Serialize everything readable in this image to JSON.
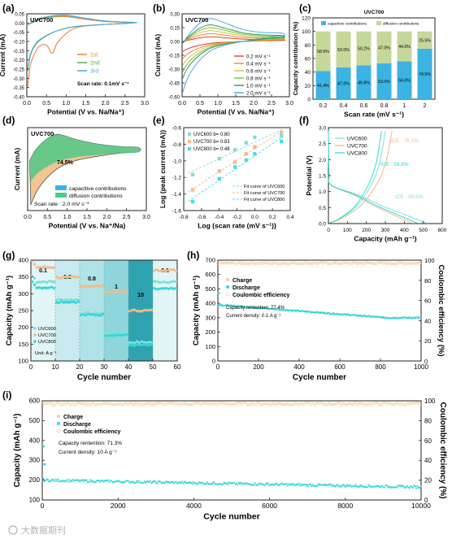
{
  "colors": {
    "orange": "#e8843c",
    "green": "#55b24a",
    "blue": "#4aa8dc",
    "red": "#e2402a",
    "cyan": "#2fd8d6",
    "peach": "#f5b98a",
    "charge": "#f6cfa4",
    "discharge": "#34d8da"
  },
  "chart_data": [
    {
      "panel": "a",
      "type": "line",
      "title": "UVC700",
      "xlabel": "Potential (V vs. Na/Na⁺)",
      "ylabel": "Current (mA)",
      "xlim": [
        0,
        3.0
      ],
      "ylim": [
        -0.4,
        0.05
      ],
      "xticks": [
        "0.0",
        "0.5",
        "1.0",
        "1.5",
        "2.0",
        "2.5",
        "3.0"
      ],
      "yticks": [
        "0.05",
        "0.00",
        "-0.05",
        "-0.10",
        "-0.15",
        "-0.20",
        "-0.25",
        "-0.30",
        "-0.35",
        "-0.40"
      ],
      "legend": [
        "1st",
        "2nd",
        "3rd"
      ],
      "note": "Scan rate: 0.1mV s⁻¹",
      "series": [
        {
          "name": "1st",
          "color": "#e8843c",
          "x": [
            0.02,
            0.3,
            0.6,
            1.0,
            1.5,
            2.0,
            2.5,
            2.8,
            2.5,
            1.8,
            1.2,
            0.8,
            0.65,
            0.5,
            0.3,
            0.1,
            0.02
          ],
          "y": [
            -0.01,
            0.015,
            0.03,
            0.035,
            0.02,
            0.008,
            0.004,
            0.003,
            -0.002,
            -0.01,
            -0.03,
            -0.1,
            -0.165,
            -0.12,
            -0.13,
            -0.22,
            -0.345
          ]
        },
        {
          "name": "2nd",
          "color": "#55b24a",
          "x": [
            0.02,
            0.3,
            0.6,
            1.0,
            1.5,
            2.0,
            2.5,
            2.8,
            2.5,
            1.8,
            1.2,
            0.8,
            0.5,
            0.25,
            0.1,
            0.02
          ],
          "y": [
            -0.01,
            0.02,
            0.035,
            0.04,
            0.025,
            0.01,
            0.005,
            0.003,
            -0.002,
            -0.01,
            -0.02,
            -0.04,
            -0.07,
            -0.11,
            -0.17,
            -0.26
          ]
        },
        {
          "name": "3rd",
          "color": "#4aa8dc",
          "x": [
            0.02,
            0.3,
            0.6,
            1.0,
            1.5,
            2.0,
            2.5,
            2.8,
            2.5,
            1.8,
            1.2,
            0.8,
            0.5,
            0.25,
            0.1,
            0.02
          ],
          "y": [
            -0.01,
            0.022,
            0.037,
            0.042,
            0.026,
            0.011,
            0.005,
            0.003,
            -0.002,
            -0.01,
            -0.02,
            -0.04,
            -0.068,
            -0.105,
            -0.165,
            -0.25
          ]
        }
      ]
    },
    {
      "panel": "b",
      "type": "line",
      "title": "UVC700",
      "xlabel": "Potential (V vs. Na/Na⁺)",
      "ylabel": "Current (mA)",
      "xlim": [
        0,
        3.0
      ],
      "ylim": [
        -0.6,
        0.3
      ],
      "xticks": [
        "0.0",
        "0.5",
        "1.0",
        "1.5",
        "2.0",
        "2.5",
        "3.0"
      ],
      "yticks": [
        "0.30",
        "0.15",
        "0.00",
        "-0.15",
        "-0.30",
        "-0.45",
        "-0.60"
      ],
      "legend": [
        "0.2 mV s⁻¹",
        "0.4 mV s⁻¹",
        "0.6 mV s⁻¹",
        "0.8 mV s⁻¹",
        "1.0 mV s⁻¹",
        "2.0 mV s⁻¹"
      ],
      "series": [
        {
          "name": "0.2 mV s⁻¹",
          "color": "#e2402a",
          "scale": 0.2
        },
        {
          "name": "0.4 mV s⁻¹",
          "color": "#e8843c",
          "scale": 0.34
        },
        {
          "name": "0.6 mV s⁻¹",
          "color": "#d6c43a",
          "scale": 0.47
        },
        {
          "name": "0.8 mV s⁻¹",
          "color": "#7bc043",
          "scale": 0.6
        },
        {
          "name": "1.0 mV s⁻¹",
          "color": "#2b9a4a",
          "scale": 0.72
        },
        {
          "name": "2.0 mV s⁻¹",
          "color": "#4aa8dc",
          "scale": 1.0
        }
      ]
    },
    {
      "panel": "c",
      "type": "bar",
      "title": "UVC700",
      "xlabel": "Scan rate (mV s⁻¹)",
      "ylabel": "Capacity contribution (%)",
      "ylim": [
        0,
        120
      ],
      "yticks": [
        "0",
        "20",
        "40",
        "60",
        "80",
        "100",
        "120"
      ],
      "categories": [
        "0.2",
        "0.4",
        "0.6",
        "0.8",
        "1",
        "2"
      ],
      "series": [
        {
          "name": "capacitive contributions",
          "color": "#3bb3e3",
          "values": [
            41.4,
            47.0,
            49.8,
            53.0,
            56.0,
            74.5
          ],
          "labels": [
            "41.4%",
            "47.0%",
            "49.8%",
            "53.0%",
            "56.0%",
            "74.5%"
          ]
        },
        {
          "name": "diffusion contributions",
          "color": "#c6d79a",
          "values": [
            58.6,
            53.0,
            50.2,
            47.0,
            44.0,
            25.5
          ],
          "labels": [
            "58.6%",
            "53.0%",
            "50.2%",
            "47.0%",
            "44.0%",
            "25.5%"
          ]
        }
      ]
    },
    {
      "panel": "d",
      "type": "area",
      "title": "UVC700",
      "xlabel": "Potential (V vs. Na⁺/Na)",
      "ylabel": "Current (mA)",
      "xlim": [
        0,
        3.0
      ],
      "xticks": [
        "0.0",
        "0.5",
        "1.0",
        "1.5",
        "2.0",
        "2.5",
        "3.0"
      ],
      "annotation": "74.5%",
      "note": "Scan rate : 2.0 mV s⁻¹",
      "legend": [
        "capacitive contributions",
        "diffusion contributions"
      ]
    },
    {
      "panel": "e",
      "type": "scatter",
      "xlabel": "Log (scan rate (mV s⁻¹))",
      "ylabel": "Log (peak current (mA))",
      "xlim": [
        -0.8,
        0.4
      ],
      "ylim": [
        -1.7,
        -0.5
      ],
      "xticks": [
        "-0.8",
        "-0.6",
        "-0.4",
        "-0.2",
        "0.0",
        "0.2",
        "0.4"
      ],
      "yticks": [
        "-0.6",
        "-0.8",
        "-1.0",
        "-1.2",
        "-1.4",
        "-1.6"
      ],
      "x": [
        -0.699,
        -0.398,
        -0.222,
        -0.097,
        0.0,
        0.301
      ],
      "series": [
        {
          "name": "UVC600",
          "label": "UVC600 b= 0.80",
          "fit": "Fit curve of UVC600",
          "color": "#7ee0d6",
          "y": [
            -1.18,
            -0.95,
            -0.82,
            -0.72,
            -0.64,
            -0.62
          ]
        },
        {
          "name": "UVC700",
          "label": "UVC700 b= 0.83",
          "fit": "Fit curve of UVC700",
          "color": "#f5b98a",
          "y": [
            -1.4,
            -1.13,
            -1.0,
            -0.88,
            -0.78,
            -0.57
          ]
        },
        {
          "name": "UVC800",
          "label": "UVC800 b= 0.48",
          "fit": "Fit curve of UVC800",
          "color": "#3ee0e4",
          "y": [
            -1.57,
            -1.24,
            -1.07,
            -0.97,
            -0.88,
            -0.7
          ]
        }
      ]
    },
    {
      "panel": "f",
      "type": "line",
      "xlabel": "Capacity (mAh g⁻¹)",
      "ylabel": "Potential (V)",
      "xlim": [
        0,
        600
      ],
      "ylim": [
        0,
        3.0
      ],
      "xticks": [
        "0",
        "100",
        "200",
        "300",
        "400",
        "500",
        "600"
      ],
      "yticks": [
        "0.0",
        "0.5",
        "1.0",
        "1.5",
        "2.0",
        "2.5",
        "3.0"
      ],
      "legend": [
        "UVC600",
        "UVC700",
        "UVC800"
      ],
      "annotations": [
        "ICE : 76.1%",
        "ICE : 56.8%",
        "ICE : 59.6%"
      ],
      "series": [
        {
          "name": "UVC600",
          "color": "#7ee0d6",
          "first_discharge": 520,
          "charge": 300
        },
        {
          "name": "UVC700",
          "color": "#f5b98a",
          "first_discharge": 440,
          "charge": 335
        },
        {
          "name": "UVC800",
          "color": "#34d8da",
          "first_discharge": 470,
          "charge": 280
        }
      ]
    },
    {
      "panel": "g",
      "type": "scatter",
      "xlabel": "Cycle number",
      "ylabel": "Capacity (mAh g⁻¹)",
      "xlim": [
        0,
        60
      ],
      "ylim": [
        50,
        400
      ],
      "xticks": [
        "0",
        "10",
        "20",
        "30",
        "40",
        "50",
        "60"
      ],
      "yticks": [
        "100",
        "150",
        "200",
        "250",
        "300",
        "350",
        "400"
      ],
      "rate_labels": [
        "0.1",
        "0.5",
        "0.8",
        "1",
        "10",
        "0.1"
      ],
      "legend": [
        "UVC600",
        "UVC700",
        "UVC800"
      ],
      "note": "Unit: A g⁻¹",
      "series": [
        {
          "name": "UVC600",
          "color": "#7ee0d6",
          "levels": [
            325,
            262,
            215,
            150,
            115,
            325
          ]
        },
        {
          "name": "UVC700",
          "color": "#f5b98a",
          "levels": [
            375,
            340,
            310,
            290,
            225,
            365
          ]
        },
        {
          "name": "UVC800",
          "color": "#34d8da",
          "levels": [
            305,
            255,
            210,
            140,
            105,
            300
          ]
        }
      ]
    },
    {
      "panel": "h",
      "type": "scatter",
      "xlabel": "Cycle number",
      "ylabel": "Capacity (mAh g⁻¹)",
      "ylabel_right": "Coulombic efficiency (%)",
      "xlim": [
        0,
        1000
      ],
      "ylim": [
        0,
        700
      ],
      "ylim_right": [
        0,
        100
      ],
      "xticks": [
        "0",
        "200",
        "400",
        "600",
        "800",
        "1000"
      ],
      "yticks": [
        "0",
        "100",
        "200",
        "300",
        "400",
        "500",
        "600",
        "700"
      ],
      "yticks_right": [
        "0",
        "20",
        "40",
        "60",
        "80",
        "100"
      ],
      "legend": [
        "Charge",
        "Discharge",
        "Coulombic efficiency"
      ],
      "notes": [
        "Capacity rentention: 77.4%",
        "Current density: 0.1 A g⁻¹"
      ],
      "series": [
        {
          "name": "Charge",
          "color": "#f6cfa4",
          "start": 390,
          "end": 300
        },
        {
          "name": "Discharge",
          "color": "#34d8da",
          "start": 400,
          "end": 300
        },
        {
          "name": "Coulombic efficiency",
          "color": "#f6cfa4",
          "value": 97
        }
      ]
    },
    {
      "panel": "i",
      "type": "scatter",
      "xlabel": "Cycle number",
      "ylabel": "Capacity (mAh g⁻¹)",
      "ylabel_right": "Coulombic efficiency (%)",
      "xlim": [
        0,
        10000
      ],
      "ylim": [
        100,
        600
      ],
      "ylim_right": [
        0,
        100
      ],
      "xticks": [
        "0",
        "2000",
        "4000",
        "6000",
        "8000",
        "10000"
      ],
      "yticks": [
        "100",
        "200",
        "300",
        "400",
        "500",
        "600"
      ],
      "yticks_right": [
        "0",
        "20",
        "40",
        "60",
        "80",
        "100"
      ],
      "legend": [
        "Charge",
        "Discharge",
        "Coulombic efficiency"
      ],
      "notes": [
        "Capacity rentention: 71.3%",
        "Current density: 10 A g⁻¹"
      ],
      "series": [
        {
          "name": "Charge",
          "color": "#f6cfa4",
          "start": 200,
          "end": 165
        },
        {
          "name": "Discharge",
          "color": "#34d8da",
          "start": 210,
          "end": 165
        },
        {
          "name": "Coulombic efficiency",
          "color": "#f6cfa4",
          "value": 97
        }
      ]
    }
  ],
  "panels": {
    "a": "(a)",
    "b": "(b)",
    "c": "(c)",
    "d": "(d)",
    "e": "(e)",
    "f": "(f)",
    "g": "(g)",
    "h": "(h)",
    "i": "(i)"
  },
  "watermark": "大数据期刊"
}
